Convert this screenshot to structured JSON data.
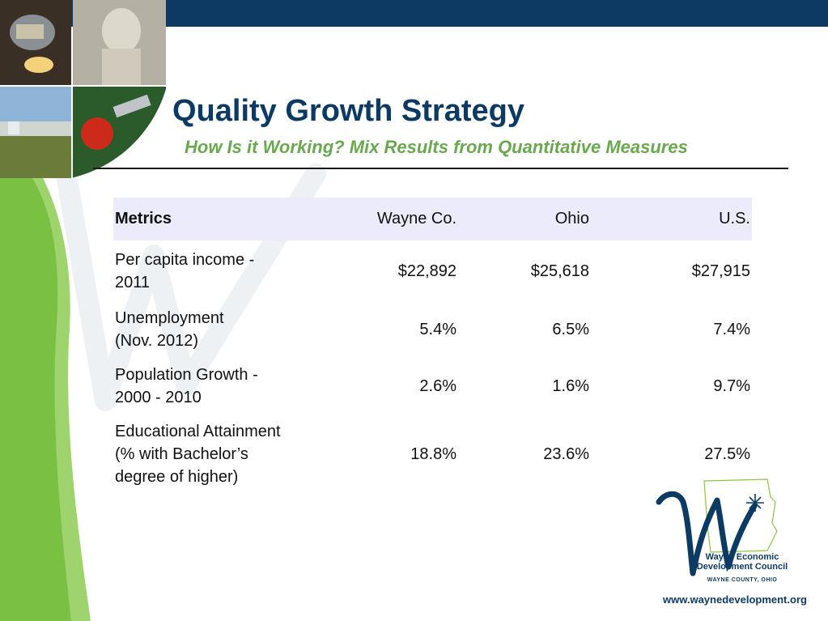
{
  "slide": {
    "title": "Quality Growth Strategy",
    "subtitle": "How  Is it Working?  Mix Results from Quantitative Measures"
  },
  "table": {
    "headers": [
      "Metrics",
      "Wayne Co.",
      "Ohio",
      "U.S."
    ],
    "rows": [
      {
        "label_lines": [
          "Per capita income -",
          "2011"
        ],
        "wayne": "$22,892",
        "ohio": "$25,618",
        "us": "$27,915"
      },
      {
        "label_lines": [
          "Unemployment",
          "(Nov. 2012)"
        ],
        "wayne": "5.4%",
        "ohio": "6.5%",
        "us": "7.4%"
      },
      {
        "label_lines": [
          "Population Growth  -",
          "2000 - 2010"
        ],
        "wayne": "2.6%",
        "ohio": "1.6%",
        "us": "9.7%"
      },
      {
        "label_lines": [
          "Educational Attainment",
          "(% with Bachelor’s",
          "degree of higher)"
        ],
        "wayne": "18.8%",
        "ohio": "23.6%",
        "us": "27.5%"
      }
    ]
  },
  "logo": {
    "line1": "Wayne Economic",
    "line2": "Development Council",
    "county": "WAYNE COUNTY, OHIO"
  },
  "website": "www.waynedevelopment.org",
  "colors": {
    "navy": "#0d3a63",
    "green": "#7ac143",
    "subtitle_green": "#6aa84f",
    "header_row": "#ebebfb"
  }
}
